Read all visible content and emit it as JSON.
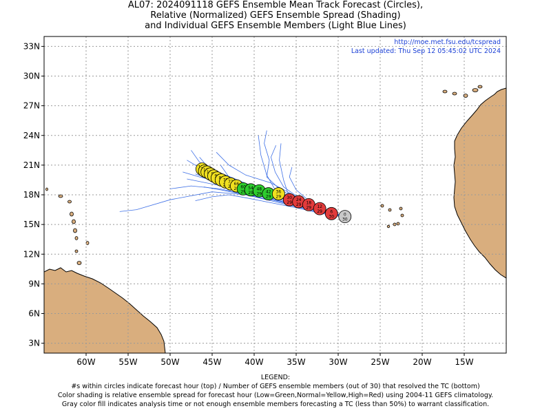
{
  "title": {
    "line1": "AL07: 2024091118 GEFS Ensemble Mean Track Forecast (Circles),",
    "line2": "Relative (Normalized) GEFS Ensemble Spread (Shading)",
    "line3": "and Individual GEFS Ensemble Members (Light Blue Lines)"
  },
  "info": {
    "url": "http://moe.met.fsu.edu/tcspread",
    "updated": "Last updated: Thu Sep 12 05:45:02 UTC 2024"
  },
  "axes": {
    "lat_labels": [
      "33N",
      "30N",
      "27N",
      "24N",
      "21N",
      "18N",
      "15N",
      "12N",
      "9N",
      "6N",
      "3N"
    ],
    "lat_values": [
      33,
      30,
      27,
      24,
      21,
      18,
      15,
      12,
      9,
      6,
      3
    ],
    "lon_labels": [
      "60W",
      "55W",
      "50W",
      "45W",
      "40W",
      "35W",
      "30W",
      "25W",
      "20W",
      "15W"
    ],
    "lon_values": [
      -60,
      -55,
      -50,
      -45,
      -40,
      -35,
      -30,
      -25,
      -20,
      -15
    ],
    "lon_range": [
      -65,
      -10
    ],
    "lat_range": [
      2,
      34
    ],
    "grid": true
  },
  "colors": {
    "land": "#d9ae7e",
    "member_lines": "#3d6fe6",
    "gray": "#c8c8c8",
    "red": "#e23b3b",
    "green": "#2ecc2e",
    "yellow": "#f0e020",
    "info_text": "#1a3fd6"
  },
  "track": [
    {
      "hour": "0",
      "members": "30",
      "lon": -29.2,
      "lat": 15.8,
      "color": "gray"
    },
    {
      "hour": "6",
      "members": "30",
      "lon": -30.8,
      "lat": 16.1,
      "color": "red"
    },
    {
      "hour": "12",
      "members": "29",
      "lon": -32.2,
      "lat": 16.6,
      "color": "red"
    },
    {
      "hour": "18",
      "members": "29",
      "lon": -33.5,
      "lat": 17.0,
      "color": "red"
    },
    {
      "hour": "24",
      "members": "29",
      "lon": -34.7,
      "lat": 17.3,
      "color": "red"
    },
    {
      "hour": "30",
      "members": "29",
      "lon": -35.8,
      "lat": 17.5,
      "color": "red"
    },
    {
      "hour": "36",
      "members": "29",
      "lon": -37.1,
      "lat": 18.1,
      "color": "yellow"
    },
    {
      "hour": "42",
      "members": "29",
      "lon": -38.3,
      "lat": 18.1,
      "color": "green"
    },
    {
      "hour": "48",
      "members": "29",
      "lon": -39.4,
      "lat": 18.4,
      "color": "green"
    },
    {
      "hour": "54",
      "members": "29",
      "lon": -40.4,
      "lat": 18.5,
      "color": "green"
    },
    {
      "hour": "60",
      "members": "29",
      "lon": -41.3,
      "lat": 18.6,
      "color": "green"
    },
    {
      "hour": "66",
      "members": "29",
      "lon": -42.1,
      "lat": 18.9,
      "color": "yellow"
    },
    {
      "hour": "72",
      "members": "29",
      "lon": -42.8,
      "lat": 19.1,
      "color": "yellow"
    },
    {
      "hour": "78",
      "members": "29",
      "lon": -43.4,
      "lat": 19.3,
      "color": "yellow"
    },
    {
      "hour": "84",
      "members": "29",
      "lon": -43.9,
      "lat": 19.5,
      "color": "yellow"
    },
    {
      "hour": "90",
      "members": "29",
      "lon": -44.4,
      "lat": 19.7,
      "color": "yellow"
    },
    {
      "hour": "96",
      "members": "29",
      "lon": -44.8,
      "lat": 19.9,
      "color": "yellow"
    },
    {
      "hour": "102",
      "members": "29",
      "lon": -45.2,
      "lat": 20.1,
      "color": "yellow"
    },
    {
      "hour": "108",
      "members": "29",
      "lon": -45.6,
      "lat": 20.3,
      "color": "yellow"
    },
    {
      "hour": "114",
      "members": "29",
      "lon": -45.9,
      "lat": 20.4,
      "color": "yellow"
    },
    {
      "hour": "120",
      "members": "29",
      "lon": -46.2,
      "lat": 20.6,
      "color": "yellow"
    }
  ],
  "members": [
    [
      [
        -29.2,
        15.8
      ],
      [
        -32,
        16.4
      ],
      [
        -35,
        17.2
      ],
      [
        -38,
        17.9
      ],
      [
        -41,
        18.4
      ],
      [
        -44,
        19.2
      ],
      [
        -47,
        20.1
      ]
    ],
    [
      [
        -29.2,
        15.8
      ],
      [
        -32,
        16.2
      ],
      [
        -35,
        16.9
      ],
      [
        -38,
        17.6
      ],
      [
        -41,
        18.2
      ],
      [
        -44.5,
        19.0
      ],
      [
        -48,
        19.6
      ]
    ],
    [
      [
        -29.2,
        15.8
      ],
      [
        -32,
        16.5
      ],
      [
        -35,
        17.4
      ],
      [
        -38,
        18.3
      ],
      [
        -41,
        19.0
      ],
      [
        -44,
        20.0
      ],
      [
        -46.5,
        21.3
      ],
      [
        -47.5,
        22.5
      ]
    ],
    [
      [
        -29.2,
        15.8
      ],
      [
        -32,
        16.3
      ],
      [
        -35,
        17.1
      ],
      [
        -38,
        17.7
      ],
      [
        -41,
        18.0
      ],
      [
        -45,
        18.3
      ],
      [
        -50,
        17.5
      ],
      [
        -54,
        16.5
      ],
      [
        -56,
        16.3
      ]
    ],
    [
      [
        -29.2,
        15.8
      ],
      [
        -32,
        16.6
      ],
      [
        -35,
        17.6
      ],
      [
        -37,
        18.6
      ],
      [
        -38.5,
        19.8
      ],
      [
        -38.2,
        21.5
      ],
      [
        -38.8,
        23.2
      ],
      [
        -38.5,
        24.5
      ]
    ],
    [
      [
        -29.2,
        15.8
      ],
      [
        -32,
        16.6
      ],
      [
        -35,
        17.5
      ],
      [
        -37.5,
        18.5
      ],
      [
        -38.5,
        20.0
      ],
      [
        -39.2,
        22.0
      ],
      [
        -39.5,
        24.0
      ]
    ],
    [
      [
        -29.2,
        15.8
      ],
      [
        -32,
        16.5
      ],
      [
        -34,
        17.2
      ],
      [
        -36,
        18.2
      ],
      [
        -36.5,
        19.5
      ],
      [
        -37.0,
        21.5
      ],
      [
        -36.8,
        23.2
      ]
    ],
    [
      [
        -29.2,
        15.8
      ],
      [
        -32,
        16.2
      ],
      [
        -35,
        16.8
      ],
      [
        -38,
        17.4
      ],
      [
        -41,
        18.0
      ],
      [
        -44,
        18.6
      ],
      [
        -47.5,
        18.9
      ],
      [
        -50,
        18.6
      ]
    ],
    [
      [
        -29.2,
        15.8
      ],
      [
        -32,
        16.3
      ],
      [
        -35,
        17.0
      ],
      [
        -38,
        17.8
      ],
      [
        -41,
        18.5
      ],
      [
        -44,
        19.4
      ],
      [
        -46,
        20.5
      ],
      [
        -48,
        21.5
      ]
    ],
    [
      [
        -29.2,
        15.8
      ],
      [
        -31.5,
        16.4
      ],
      [
        -34,
        17.3
      ],
      [
        -36,
        18.3
      ],
      [
        -38,
        19.2
      ],
      [
        -41,
        20.0
      ],
      [
        -43,
        21.0
      ],
      [
        -44.5,
        22.3
      ]
    ],
    [
      [
        -29.2,
        15.8
      ],
      [
        -32,
        16.4
      ],
      [
        -35,
        17.2
      ],
      [
        -38,
        17.9
      ],
      [
        -41,
        18.8
      ],
      [
        -43,
        19.8
      ],
      [
        -44.0,
        21.0
      ]
    ],
    [
      [
        -29.2,
        15.8
      ],
      [
        -32,
        16.1
      ],
      [
        -35,
        16.7
      ],
      [
        -38,
        17.2
      ],
      [
        -41,
        17.7
      ],
      [
        -43,
        18.0
      ],
      [
        -45,
        17.8
      ],
      [
        -47,
        17.4
      ]
    ],
    [
      [
        -29.2,
        15.8
      ],
      [
        -32,
        16.3
      ],
      [
        -35,
        17.0
      ],
      [
        -38,
        17.6
      ],
      [
        -41,
        18.4
      ],
      [
        -43.5,
        19.6
      ],
      [
        -45.5,
        20.8
      ],
      [
        -46.5,
        21.8
      ]
    ],
    [
      [
        -29.2,
        15.8
      ],
      [
        -32,
        16.6
      ],
      [
        -34.5,
        17.6
      ],
      [
        -36.5,
        18.8
      ],
      [
        -37.5,
        20.3
      ],
      [
        -38.0,
        21.8
      ],
      [
        -37.4,
        23.0
      ]
    ],
    [
      [
        -29.2,
        15.8
      ],
      [
        -32,
        16.4
      ],
      [
        -35,
        17.3
      ],
      [
        -38,
        18.1
      ],
      [
        -41,
        18.7
      ],
      [
        -44,
        19.3
      ],
      [
        -46.5,
        19.8
      ],
      [
        -48.5,
        20.3
      ]
    ],
    [
      [
        -29.2,
        15.8
      ],
      [
        -32,
        16.2
      ],
      [
        -35,
        16.9
      ],
      [
        -38,
        17.5
      ],
      [
        -41,
        18.0
      ],
      [
        -44,
        18.5
      ],
      [
        -46,
        18.8
      ]
    ],
    [
      [
        -29.2,
        15.8
      ],
      [
        -31.5,
        16.5
      ],
      [
        -33.5,
        17.4
      ],
      [
        -35,
        18.5
      ],
      [
        -35.8,
        19.8
      ],
      [
        -35.5,
        20.8
      ]
    ],
    [
      [
        -29.2,
        15.8
      ],
      [
        -32,
        16.4
      ],
      [
        -35,
        17.2
      ],
      [
        -38,
        18.0
      ],
      [
        -40,
        18.8
      ],
      [
        -42.5,
        19.7
      ],
      [
        -44,
        20.2
      ]
    ]
  ],
  "legend": {
    "heading": "LEGEND:",
    "line1": "#s within circles indicate forecast hour (top) / Number of GEFS ensemble members (out of 30) that resolved the TC (bottom)",
    "line2": "Color shading is relative ensemble spread for forecast hour (Low=Green,Normal=Yellow,High=Red) using 2004-11 GEFS climatology.",
    "line3": "Gray color fill indicates analysis time or not enough ensemble members forecasting a TC (less than 50%) to warrant classification."
  }
}
